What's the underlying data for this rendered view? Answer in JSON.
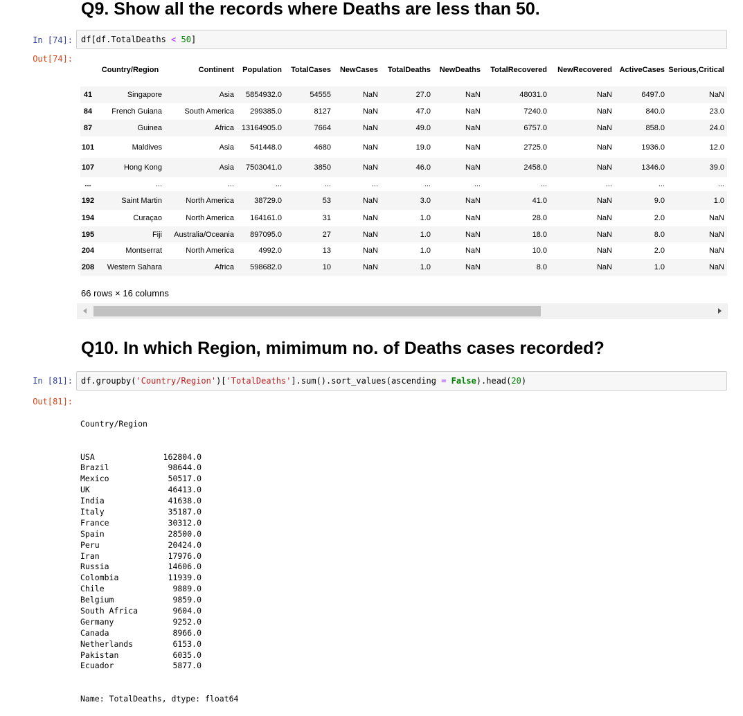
{
  "cells": {
    "q9": {
      "heading": "Q9. Show all the records where Deaths are less than 50.",
      "in_prompt": "In [74]:",
      "out_prompt": "Out[74]:",
      "code_tokens": [
        {
          "t": "df[df.TotalDeaths ",
          "c": ""
        },
        {
          "t": "<",
          "c": "tk-op"
        },
        {
          "t": " ",
          "c": ""
        },
        {
          "t": "50",
          "c": "tk-num"
        },
        {
          "t": "]",
          "c": ""
        }
      ],
      "dims_text": "66 rows × 16 columns"
    },
    "q10": {
      "heading": "Q10. In which Region, mimimum no. of Deaths cases recorded?",
      "in_prompt": "In [81]:",
      "out_prompt": "Out[81]:",
      "code_tokens": [
        {
          "t": "df.groupby(",
          "c": ""
        },
        {
          "t": "'Country/Region'",
          "c": "tk-str"
        },
        {
          "t": ")[",
          "c": ""
        },
        {
          "t": "'TotalDeaths'",
          "c": "tk-str"
        },
        {
          "t": "].sum().sort_values(ascending ",
          "c": ""
        },
        {
          "t": "=",
          "c": "tk-op"
        },
        {
          "t": " ",
          "c": ""
        },
        {
          "t": "False",
          "c": "tk-kw"
        },
        {
          "t": ").head(",
          "c": ""
        },
        {
          "t": "20",
          "c": "tk-num"
        },
        {
          "t": ")",
          "c": ""
        }
      ]
    }
  },
  "dataframe": {
    "columns": [
      "",
      "Country/Region",
      "Continent",
      "Population",
      "TotalCases",
      "NewCases",
      "TotalDeaths",
      "NewDeaths",
      "TotalRecovered",
      "NewRecovered",
      "ActiveCases",
      "Serious,Critical"
    ],
    "rows": [
      {
        "index": "41",
        "cells": [
          "Singapore",
          "Asia",
          "5854932.0",
          "54555",
          "NaN",
          "27.0",
          "NaN",
          "48031.0",
          "NaN",
          "6497.0",
          "NaN"
        ]
      },
      {
        "index": "84",
        "cells": [
          "French Guiana",
          "South America",
          "299385.0",
          "8127",
          "NaN",
          "47.0",
          "NaN",
          "7240.0",
          "NaN",
          "840.0",
          "23.0"
        ]
      },
      {
        "index": "87",
        "cells": [
          "Guinea",
          "Africa",
          "13164905.0",
          "7664",
          "NaN",
          "49.0",
          "NaN",
          "6757.0",
          "NaN",
          "858.0",
          "24.0"
        ]
      },
      {
        "index": "101",
        "cells": [
          "Maldives",
          "Asia",
          "541448.0",
          "4680",
          "NaN",
          "19.0",
          "NaN",
          "2725.0",
          "NaN",
          "1936.0",
          "12.0"
        ]
      },
      {
        "index": "107",
        "cells": [
          "Hong Kong",
          "Asia",
          "7503041.0",
          "3850",
          "NaN",
          "46.0",
          "NaN",
          "2458.0",
          "NaN",
          "1346.0",
          "39.0"
        ]
      },
      {
        "index": "...",
        "cells": [
          "...",
          "...",
          "...",
          "...",
          "...",
          "...",
          "...",
          "...",
          "...",
          "...",
          "..."
        ]
      },
      {
        "index": "192",
        "cells": [
          "Saint Martin",
          "North America",
          "38729.0",
          "53",
          "NaN",
          "3.0",
          "NaN",
          "41.0",
          "NaN",
          "9.0",
          "1.0"
        ]
      },
      {
        "index": "194",
        "cells": [
          "Curaçao",
          "North America",
          "164161.0",
          "31",
          "NaN",
          "1.0",
          "NaN",
          "28.0",
          "NaN",
          "2.0",
          "NaN"
        ]
      },
      {
        "index": "195",
        "cells": [
          "Fiji",
          "Australia/Oceania",
          "897095.0",
          "27",
          "NaN",
          "1.0",
          "NaN",
          "18.0",
          "NaN",
          "8.0",
          "NaN"
        ]
      },
      {
        "index": "204",
        "cells": [
          "Montserrat",
          "North America",
          "4992.0",
          "13",
          "NaN",
          "1.0",
          "NaN",
          "10.0",
          "NaN",
          "2.0",
          "NaN"
        ]
      },
      {
        "index": "208",
        "cells": [
          "Western Sahara",
          "Africa",
          "598682.0",
          "10",
          "NaN",
          "1.0",
          "NaN",
          "8.0",
          "NaN",
          "1.0",
          "NaN"
        ]
      }
    ]
  },
  "series": {
    "header": "Country/Region",
    "rows": [
      {
        "label": "USA",
        "value": "162804.0"
      },
      {
        "label": "Brazil",
        "value": "98644.0"
      },
      {
        "label": "Mexico",
        "value": "50517.0"
      },
      {
        "label": "UK",
        "value": "46413.0"
      },
      {
        "label": "India",
        "value": "41638.0"
      },
      {
        "label": "Italy",
        "value": "35187.0"
      },
      {
        "label": "France",
        "value": "30312.0"
      },
      {
        "label": "Spain",
        "value": "28500.0"
      },
      {
        "label": "Peru",
        "value": "20424.0"
      },
      {
        "label": "Iran",
        "value": "17976.0"
      },
      {
        "label": "Russia",
        "value": "14606.0"
      },
      {
        "label": "Colombia",
        "value": "11939.0"
      },
      {
        "label": "Chile",
        "value": "9889.0"
      },
      {
        "label": "Belgium",
        "value": "9859.0"
      },
      {
        "label": "South Africa",
        "value": "9604.0"
      },
      {
        "label": "Germany",
        "value": "9252.0"
      },
      {
        "label": "Canada",
        "value": "8966.0"
      },
      {
        "label": "Netherlands",
        "value": "6153.0"
      },
      {
        "label": "Pakistan",
        "value": "6035.0"
      },
      {
        "label": "Ecuador",
        "value": "5877.0"
      }
    ],
    "footer": "Name: TotalDeaths, dtype: float64"
  }
}
